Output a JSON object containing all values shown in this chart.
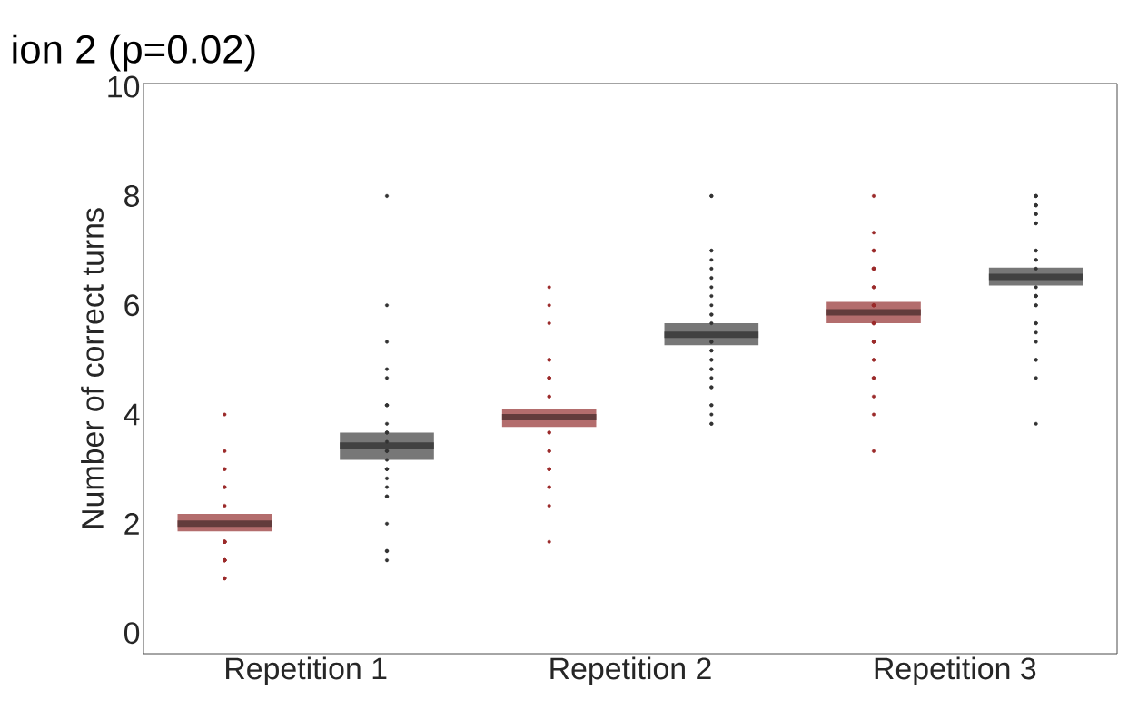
{
  "chart_data": {
    "type": "box",
    "title": "ion 2 (p=0.02)",
    "ylabel": "Number of correct turns",
    "categories": [
      "Repetition 1",
      "Repetition 2",
      "Repetition 3"
    ],
    "ylim": [
      -0.38,
      10.06
    ],
    "yticks": [
      0,
      2,
      4,
      6,
      8,
      10
    ],
    "marker": "circle",
    "series": [
      {
        "type": "box",
        "color": "#b36d6d",
        "boxes": [
          {
            "low": 1.86,
            "q1": 1.86,
            "median": 2.0,
            "q3": 2.18,
            "high": 2.18
          },
          {
            "low": 3.77,
            "q1": 3.77,
            "median": 3.95,
            "q3": 4.11,
            "high": 4.11
          },
          {
            "low": 5.67,
            "q1": 5.67,
            "median": 5.87,
            "q3": 6.06,
            "high": 6.06
          }
        ]
      },
      {
        "type": "box",
        "color": "#777777",
        "boxes": [
          {
            "low": 3.17,
            "q1": 3.17,
            "median": 3.43,
            "q3": 3.67,
            "high": 3.67
          },
          {
            "low": 5.27,
            "q1": 5.27,
            "median": 5.46,
            "q3": 5.67,
            "high": 5.67
          },
          {
            "low": 6.36,
            "q1": 6.36,
            "median": 6.52,
            "q3": 6.69,
            "high": 6.69
          }
        ]
      },
      {
        "type": "scatter",
        "color": "#9b2a2a",
        "x": [
          "Repetition 1",
          "Repetition 1",
          "Repetition 1",
          "Repetition 1",
          "Repetition 1",
          "Repetition 1",
          "Repetition 1",
          "Repetition 1",
          "Repetition 1",
          "Repetition 1",
          "Repetition 1",
          "Repetition 1",
          "Repetition 1",
          "Repetition 1",
          "Repetition 1",
          "Repetition 1",
          "Repetition 1",
          "Repetition 1",
          "Repetition 1",
          "Repetition 1",
          "Repetition 1",
          "Repetition 1",
          "Repetition 1",
          "Repetition 2",
          "Repetition 2",
          "Repetition 2",
          "Repetition 2",
          "Repetition 2",
          "Repetition 2",
          "Repetition 2",
          "Repetition 2",
          "Repetition 2",
          "Repetition 2",
          "Repetition 2",
          "Repetition 2",
          "Repetition 2",
          "Repetition 2",
          "Repetition 2",
          "Repetition 2",
          "Repetition 2",
          "Repetition 2",
          "Repetition 2",
          "Repetition 2",
          "Repetition 2",
          "Repetition 2",
          "Repetition 2",
          "Repetition 2",
          "Repetition 3",
          "Repetition 3",
          "Repetition 3",
          "Repetition 3",
          "Repetition 3",
          "Repetition 3",
          "Repetition 3",
          "Repetition 3",
          "Repetition 3",
          "Repetition 3",
          "Repetition 3",
          "Repetition 3",
          "Repetition 3",
          "Repetition 3",
          "Repetition 3",
          "Repetition 3",
          "Repetition 3",
          "Repetition 3",
          "Repetition 3",
          "Repetition 3",
          "Repetition 3",
          "Repetition 3",
          "Repetition 3",
          "Repetition 3",
          "Repetition 3",
          "Repetition 3",
          "Repetition 3",
          "Repetition 3"
        ],
        "values": [
          4.0,
          3.33,
          3.0,
          3.0,
          2.67,
          2.67,
          2.33,
          1.67,
          1.67,
          1.67,
          1.67,
          1.67,
          1.67,
          1.67,
          1.33,
          1.33,
          1.33,
          1.33,
          1.33,
          1.33,
          1.0,
          1.0,
          1.0,
          6.33,
          6.0,
          5.67,
          5.0,
          5.0,
          5.0,
          4.67,
          4.67,
          4.67,
          4.67,
          4.33,
          4.33,
          3.67,
          3.67,
          3.33,
          3.33,
          3.0,
          3.0,
          3.0,
          3.0,
          2.67,
          2.67,
          2.33,
          1.67,
          8.0,
          7.33,
          7.0,
          7.0,
          7.0,
          6.67,
          6.67,
          6.67,
          6.67,
          6.33,
          6.33,
          6.0,
          6.0,
          6.0,
          6.0,
          5.67,
          5.67,
          5.67,
          5.33,
          5.33,
          5.33,
          5.0,
          5.0,
          4.67,
          4.67,
          4.33,
          4.0,
          3.33
        ]
      },
      {
        "type": "scatter",
        "color": "#333333",
        "x": [
          "Repetition 1",
          "Repetition 1",
          "Repetition 1",
          "Repetition 1",
          "Repetition 1",
          "Repetition 1",
          "Repetition 1",
          "Repetition 1",
          "Repetition 1",
          "Repetition 1",
          "Repetition 1",
          "Repetition 1",
          "Repetition 1",
          "Repetition 1",
          "Repetition 1",
          "Repetition 1",
          "Repetition 1",
          "Repetition 1",
          "Repetition 1",
          "Repetition 1",
          "Repetition 1",
          "Repetition 1",
          "Repetition 1",
          "Repetition 1",
          "Repetition 1",
          "Repetition 1",
          "Repetition 2",
          "Repetition 2",
          "Repetition 2",
          "Repetition 2",
          "Repetition 2",
          "Repetition 2",
          "Repetition 2",
          "Repetition 2",
          "Repetition 2",
          "Repetition 2",
          "Repetition 2",
          "Repetition 2",
          "Repetition 2",
          "Repetition 2",
          "Repetition 2",
          "Repetition 2",
          "Repetition 2",
          "Repetition 2",
          "Repetition 2",
          "Repetition 2",
          "Repetition 2",
          "Repetition 2",
          "Repetition 2",
          "Repetition 2",
          "Repetition 2",
          "Repetition 2",
          "Repetition 2",
          "Repetition 2",
          "Repetition 2",
          "Repetition 3",
          "Repetition 3",
          "Repetition 3",
          "Repetition 3",
          "Repetition 3",
          "Repetition 3",
          "Repetition 3",
          "Repetition 3",
          "Repetition 3",
          "Repetition 3",
          "Repetition 3",
          "Repetition 3",
          "Repetition 3",
          "Repetition 3",
          "Repetition 3",
          "Repetition 3",
          "Repetition 3",
          "Repetition 3",
          "Repetition 3",
          "Repetition 3",
          "Repetition 3",
          "Repetition 3",
          "Repetition 3",
          "Repetition 3",
          "Repetition 3",
          "Repetition 3",
          "Repetition 3",
          "Repetition 3",
          "Repetition 3"
        ],
        "values": [
          8.0,
          6.0,
          5.33,
          4.83,
          4.67,
          4.17,
          4.17,
          4.17,
          3.83,
          3.67,
          3.67,
          3.5,
          3.33,
          3.33,
          3.17,
          3.0,
          3.0,
          3.0,
          2.83,
          2.67,
          2.5,
          2.5,
          2.0,
          1.5,
          1.5,
          1.33,
          8.0,
          8.0,
          7.0,
          7.0,
          6.83,
          6.67,
          6.5,
          6.33,
          6.17,
          6.0,
          5.83,
          5.83,
          5.67,
          5.33,
          5.33,
          5.17,
          5.17,
          5.0,
          5.0,
          4.83,
          4.83,
          4.67,
          4.5,
          4.5,
          4.17,
          4.17,
          4.0,
          3.83,
          3.83,
          8.0,
          8.0,
          8.0,
          7.83,
          7.83,
          7.83,
          7.67,
          7.67,
          7.5,
          7.5,
          7.0,
          7.0,
          6.83,
          6.83,
          6.67,
          6.33,
          6.17,
          6.17,
          6.17,
          6.0,
          6.0,
          5.67,
          5.67,
          5.5,
          5.33,
          5.0,
          5.0,
          4.67,
          3.83
        ]
      }
    ]
  }
}
